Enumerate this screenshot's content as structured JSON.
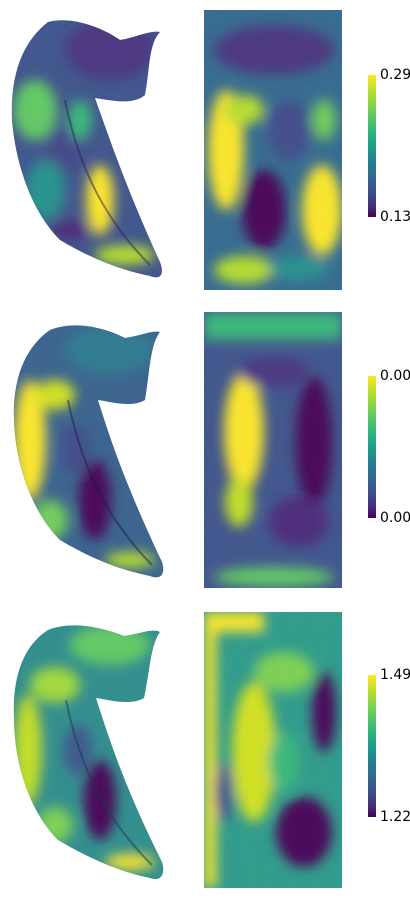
{
  "panels": [
    {
      "id": "row1",
      "colorbar": {
        "max_label": "0.29",
        "min_label": "0.13"
      }
    },
    {
      "id": "row2",
      "colorbar": {
        "max_label": "0.00",
        "min_label": "0.00"
      }
    },
    {
      "id": "row3",
      "colorbar": {
        "max_label": "1.49",
        "min_label": "1.22"
      }
    }
  ],
  "colormap": "viridis",
  "colors": {
    "high": "#fde725",
    "mid": "#21918c",
    "low": "#440154",
    "background": "#ffffff"
  }
}
